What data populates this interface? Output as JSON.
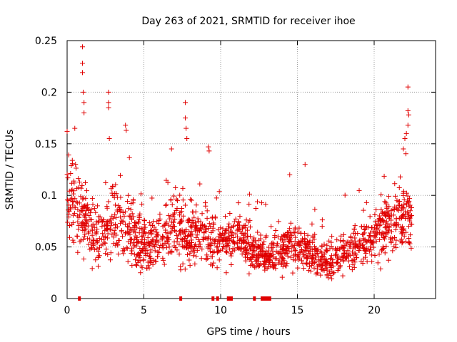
{
  "chart_data": {
    "type": "scatter",
    "title": "Day 263 of 2021, SRMTID for receiver ihoe",
    "xlabel": "GPS time / hours",
    "ylabel": "SRMTID / TECUs",
    "xlim": [
      0,
      24
    ],
    "ylim": [
      0,
      0.25
    ],
    "xticks": [
      0,
      5,
      10,
      15,
      20
    ],
    "yticks": [
      0,
      0.05,
      0.1,
      0.15,
      0.2,
      0.25
    ],
    "xtick_labels": [
      "0",
      "5",
      "10",
      "15",
      "20"
    ],
    "ytick_labels": [
      "0",
      "0.05",
      "0.1",
      "0.15",
      "0.2",
      "0.25"
    ],
    "grid": true,
    "marker": "+",
    "color": "#e00000",
    "series": [
      {
        "name": "SRMTID",
        "peaks": [
          {
            "x": 0.0,
            "y": 0.162
          },
          {
            "x": 0.5,
            "y": 0.165
          },
          {
            "x": 1.0,
            "y": 0.244
          },
          {
            "x": 1.0,
            "y": 0.228
          },
          {
            "x": 1.0,
            "y": 0.219
          },
          {
            "x": 1.05,
            "y": 0.2
          },
          {
            "x": 1.1,
            "y": 0.19
          },
          {
            "x": 1.1,
            "y": 0.18
          },
          {
            "x": 2.7,
            "y": 0.2
          },
          {
            "x": 2.7,
            "y": 0.19
          },
          {
            "x": 2.7,
            "y": 0.185
          },
          {
            "x": 2.75,
            "y": 0.155
          },
          {
            "x": 3.8,
            "y": 0.168
          },
          {
            "x": 3.85,
            "y": 0.163
          },
          {
            "x": 6.8,
            "y": 0.145
          },
          {
            "x": 7.7,
            "y": 0.19
          },
          {
            "x": 7.7,
            "y": 0.175
          },
          {
            "x": 7.75,
            "y": 0.165
          },
          {
            "x": 7.8,
            "y": 0.155
          },
          {
            "x": 9.2,
            "y": 0.147
          },
          {
            "x": 9.25,
            "y": 0.143
          },
          {
            "x": 14.5,
            "y": 0.12
          },
          {
            "x": 15.5,
            "y": 0.13
          },
          {
            "x": 22.2,
            "y": 0.205
          },
          {
            "x": 22.2,
            "y": 0.182
          },
          {
            "x": 22.25,
            "y": 0.178
          },
          {
            "x": 22.2,
            "y": 0.168
          },
          {
            "x": 22.1,
            "y": 0.16
          },
          {
            "x": 22.0,
            "y": 0.155
          },
          {
            "x": 21.9,
            "y": 0.145
          }
        ],
        "baseline_profile": [
          {
            "x": 0.0,
            "mean": 0.1,
            "spread": 0.05
          },
          {
            "x": 1.0,
            "mean": 0.085,
            "spread": 0.045
          },
          {
            "x": 2.0,
            "mean": 0.055,
            "spread": 0.03
          },
          {
            "x": 3.0,
            "mean": 0.075,
            "spread": 0.035
          },
          {
            "x": 4.0,
            "mean": 0.07,
            "spread": 0.04
          },
          {
            "x": 5.0,
            "mean": 0.05,
            "spread": 0.028
          },
          {
            "x": 6.0,
            "mean": 0.055,
            "spread": 0.03
          },
          {
            "x": 7.0,
            "mean": 0.07,
            "spread": 0.04
          },
          {
            "x": 8.0,
            "mean": 0.06,
            "spread": 0.035
          },
          {
            "x": 9.0,
            "mean": 0.065,
            "spread": 0.035
          },
          {
            "x": 10.0,
            "mean": 0.05,
            "spread": 0.03
          },
          {
            "x": 11.0,
            "mean": 0.06,
            "spread": 0.03
          },
          {
            "x": 12.0,
            "mean": 0.05,
            "spread": 0.028
          },
          {
            "x": 13.0,
            "mean": 0.04,
            "spread": 0.02
          },
          {
            "x": 14.0,
            "mean": 0.045,
            "spread": 0.025
          },
          {
            "x": 15.0,
            "mean": 0.05,
            "spread": 0.03
          },
          {
            "x": 16.0,
            "mean": 0.04,
            "spread": 0.02
          },
          {
            "x": 17.0,
            "mean": 0.035,
            "spread": 0.02
          },
          {
            "x": 18.0,
            "mean": 0.045,
            "spread": 0.02
          },
          {
            "x": 19.0,
            "mean": 0.05,
            "spread": 0.025
          },
          {
            "x": 20.0,
            "mean": 0.06,
            "spread": 0.03
          },
          {
            "x": 21.0,
            "mean": 0.07,
            "spread": 0.035
          },
          {
            "x": 22.0,
            "mean": 0.085,
            "spread": 0.04
          },
          {
            "x": 22.5,
            "mean": 0.07,
            "spread": 0.03
          }
        ],
        "data_end_x": 22.5,
        "zero_points_x": [
          0.8,
          7.4,
          9.5,
          9.8,
          10.5,
          10.6,
          10.7,
          12.2,
          12.7,
          12.8,
          12.9,
          13.0,
          13.1,
          13.2
        ]
      }
    ]
  }
}
